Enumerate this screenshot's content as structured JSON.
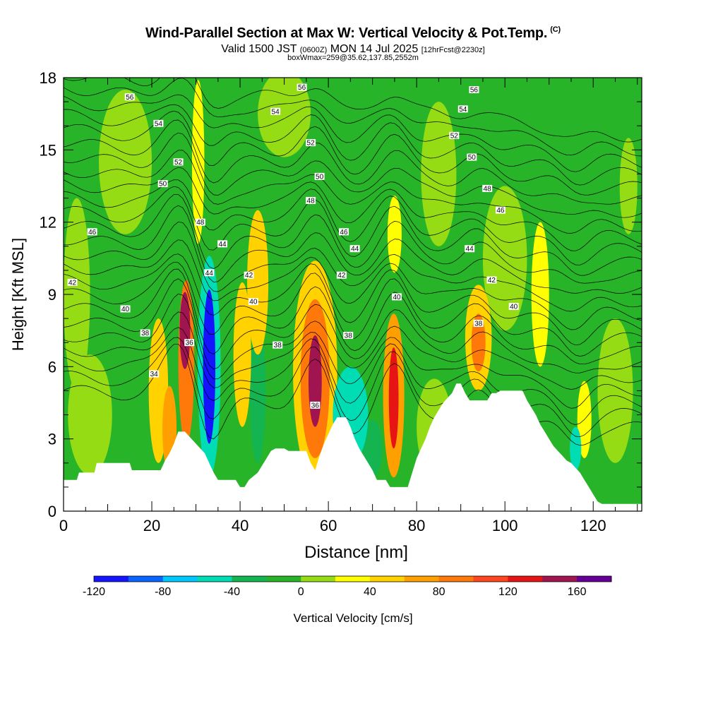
{
  "header": {
    "title": "Wind-Parallel Section at Max W: Vertical Velocity & Pot.Temp.",
    "copyright": "(C)",
    "valid_prefix": "Valid 1500 JST",
    "valid_zulu": "(0600Z)",
    "valid_date": "MON 14 Jul 2025",
    "forecast": "[12hrFcst@2230z]",
    "box_info": "boxWmax=259@35.62,137.85,2552m"
  },
  "chart_data": {
    "type": "heatmap",
    "xlabel": "Distance [nm]",
    "ylabel": "Height [Kft MSL]",
    "xlim": [
      0,
      131
    ],
    "ylim": [
      0,
      18
    ],
    "xticks": [
      0,
      20,
      40,
      60,
      80,
      100,
      120
    ],
    "yticks": [
      0,
      3,
      6,
      9,
      12,
      15,
      18
    ],
    "colorbar": {
      "label": "Vertical Velocity [cm/s]",
      "levels": [
        -120,
        -100,
        -80,
        -60,
        -40,
        -20,
        0,
        20,
        40,
        60,
        80,
        100,
        120,
        140,
        160,
        180
      ],
      "tick_labels": [
        "-120",
        "-80",
        "-40",
        "0",
        "40",
        "80",
        "120",
        "160"
      ],
      "tick_values": [
        -120,
        -80,
        -40,
        0,
        40,
        80,
        120,
        160
      ],
      "colors": [
        "#1414ff",
        "#0a64ff",
        "#00c8ff",
        "#00dcb4",
        "#14b450",
        "#28b428",
        "#96dc14",
        "#ffff00",
        "#ffd200",
        "#ffa000",
        "#ff780a",
        "#ff461e",
        "#e61414",
        "#a01450",
        "#640096"
      ]
    },
    "background_value": -20,
    "velocity_cells": [
      {
        "x": 27.5,
        "z": 7.5,
        "wx": 1.2,
        "wz": 1.6,
        "w": 140
      },
      {
        "x": 27.8,
        "z": 6.2,
        "wx": 1.8,
        "wz": 3.4,
        "w": 80
      },
      {
        "x": 33.0,
        "z": 6.0,
        "wx": 1.4,
        "wz": 3.2,
        "w": -120
      },
      {
        "x": 33.0,
        "z": 6.0,
        "wx": 2.6,
        "wz": 4.6,
        "w": -60
      },
      {
        "x": 57.0,
        "z": 5.4,
        "wx": 1.5,
        "wz": 1.9,
        "w": 150
      },
      {
        "x": 57.0,
        "z": 5.5,
        "wx": 3.3,
        "wz": 3.3,
        "w": 80
      },
      {
        "x": 57.0,
        "z": 5.8,
        "wx": 5.0,
        "wz": 4.6,
        "w": 40
      },
      {
        "x": 74.8,
        "z": 4.7,
        "wx": 1.1,
        "wz": 2.1,
        "w": 130
      },
      {
        "x": 74.8,
        "z": 4.8,
        "wx": 2.4,
        "wz": 3.4,
        "w": 60
      },
      {
        "x": 94.0,
        "z": 7.0,
        "wx": 1.6,
        "wz": 1.2,
        "w": 80
      },
      {
        "x": 94.0,
        "z": 7.2,
        "wx": 3.0,
        "wz": 2.2,
        "w": 40
      },
      {
        "x": 21.5,
        "z": 5.0,
        "wx": 2.2,
        "wz": 3.0,
        "w": 40
      },
      {
        "x": 24.0,
        "z": 3.4,
        "wx": 1.6,
        "wz": 1.8,
        "w": 60
      },
      {
        "x": 65.0,
        "z": 4.0,
        "wx": 4.0,
        "wz": 2.0,
        "w": -60
      },
      {
        "x": 70.0,
        "z": 2.6,
        "wx": 2.2,
        "wz": 1.2,
        "w": -40
      },
      {
        "x": 44.0,
        "z": 9.5,
        "wx": 2.4,
        "wz": 3.0,
        "w": 40
      },
      {
        "x": 40.5,
        "z": 6.5,
        "wx": 2.0,
        "wz": 3.0,
        "w": 40
      },
      {
        "x": 30.5,
        "z": 14.5,
        "wx": 1.4,
        "wz": 3.4,
        "w": 30
      },
      {
        "x": 75.0,
        "z": 11.5,
        "wx": 1.6,
        "wz": 1.6,
        "w": 30
      },
      {
        "x": 108.0,
        "z": 9.0,
        "wx": 2.0,
        "wz": 3.0,
        "w": 30
      },
      {
        "x": 118.0,
        "z": 3.8,
        "wx": 1.6,
        "wz": 1.6,
        "w": 30
      },
      {
        "x": 116.0,
        "z": 2.6,
        "wx": 1.3,
        "wz": 0.9,
        "w": -60
      },
      {
        "x": 44.0,
        "z": 5.0,
        "wx": 1.8,
        "wz": 3.0,
        "w": -30
      },
      {
        "x": 14.0,
        "z": 14.5,
        "wx": 6.0,
        "wz": 3.0,
        "w": 10
      },
      {
        "x": 50.0,
        "z": 16.5,
        "wx": 6.0,
        "wz": 1.8,
        "w": 10
      },
      {
        "x": 85.0,
        "z": 14.0,
        "wx": 4.0,
        "wz": 3.0,
        "w": 10
      },
      {
        "x": 128.0,
        "z": 13.5,
        "wx": 2.0,
        "wz": 2.0,
        "w": 10
      },
      {
        "x": 100.0,
        "z": 10.5,
        "wx": 5.0,
        "wz": 3.0,
        "w": 10
      },
      {
        "x": 6.0,
        "z": 4.0,
        "wx": 5.0,
        "wz": 2.5,
        "w": 10
      },
      {
        "x": 3.0,
        "z": 9.0,
        "wx": 3.0,
        "wz": 4.0,
        "w": 10
      },
      {
        "x": 125.0,
        "z": 5.0,
        "wx": 4.0,
        "wz": 3.0,
        "w": 10
      },
      {
        "x": 84.0,
        "z": 3.5,
        "wx": 4.0,
        "wz": 2.0,
        "w": 10
      }
    ],
    "terrain": [
      [
        0,
        1.3
      ],
      [
        3,
        1.3
      ],
      [
        3.5,
        1.6
      ],
      [
        7,
        1.6
      ],
      [
        7.5,
        2.0
      ],
      [
        15,
        2.0
      ],
      [
        15.5,
        1.7
      ],
      [
        22,
        1.7
      ],
      [
        23,
        2.1
      ],
      [
        24,
        2.4
      ],
      [
        25,
        2.8
      ],
      [
        26,
        3.3
      ],
      [
        27.5,
        3.3
      ],
      [
        29,
        3.0
      ],
      [
        30.5,
        2.7
      ],
      [
        32,
        2.4
      ],
      [
        33,
        2.0
      ],
      [
        34,
        1.6
      ],
      [
        35,
        1.3
      ],
      [
        39,
        1.3
      ],
      [
        40,
        1.0
      ],
      [
        41,
        1.0
      ],
      [
        42,
        1.3
      ],
      [
        44,
        1.6
      ],
      [
        45,
        1.9
      ],
      [
        46,
        2.2
      ],
      [
        47,
        2.5
      ],
      [
        48,
        2.6
      ],
      [
        50,
        2.6
      ],
      [
        51,
        2.5
      ],
      [
        55,
        2.5
      ],
      [
        56,
        2.0
      ],
      [
        57,
        1.7
      ],
      [
        58,
        2.3
      ],
      [
        59,
        2.8
      ],
      [
        60,
        3.2
      ],
      [
        61,
        3.6
      ],
      [
        62,
        3.9
      ],
      [
        64,
        3.9
      ],
      [
        65,
        3.5
      ],
      [
        66,
        3.0
      ],
      [
        67,
        2.6
      ],
      [
        68,
        2.3
      ],
      [
        69,
        2.0
      ],
      [
        70,
        1.7
      ],
      [
        71,
        1.3
      ],
      [
        73,
        1.3
      ],
      [
        74,
        1.0
      ],
      [
        78,
        1.0
      ],
      [
        79,
        1.6
      ],
      [
        80,
        2.2
      ],
      [
        81,
        2.6
      ],
      [
        82,
        3.0
      ],
      [
        83,
        3.5
      ],
      [
        84,
        3.9
      ],
      [
        85,
        4.2
      ],
      [
        86,
        4.5
      ],
      [
        87,
        4.7
      ],
      [
        88,
        4.9
      ],
      [
        89,
        5.3
      ],
      [
        90,
        5.3
      ],
      [
        91,
        4.9
      ],
      [
        92,
        4.6
      ],
      [
        96,
        4.6
      ],
      [
        97,
        4.9
      ],
      [
        98,
        4.9
      ],
      [
        99,
        5.0
      ],
      [
        104,
        5.0
      ],
      [
        105,
        4.6
      ],
      [
        106,
        4.3
      ],
      [
        107,
        4.0
      ],
      [
        108,
        3.6
      ],
      [
        109,
        3.3
      ],
      [
        110,
        3.0
      ],
      [
        111,
        2.7
      ],
      [
        112,
        2.5
      ],
      [
        113,
        2.3
      ],
      [
        114,
        2.1
      ],
      [
        115,
        2.0
      ],
      [
        116,
        1.8
      ],
      [
        117,
        1.6
      ],
      [
        118,
        1.3
      ],
      [
        119,
        1.0
      ],
      [
        120,
        0.7
      ],
      [
        121,
        0.4
      ],
      [
        122,
        0.3
      ],
      [
        131,
        0.3
      ]
    ],
    "theta_contours": {
      "levels": [
        34,
        35,
        36,
        37,
        38,
        39,
        40,
        41,
        42,
        43,
        44,
        45,
        46,
        47,
        48,
        49,
        50,
        51,
        52,
        53,
        54,
        55,
        56,
        57
      ],
      "base_height_at_34": 4.3,
      "kft_per_degree": 0.55,
      "labels": [
        {
          "text": "56",
          "x": 15,
          "z": 17.2
        },
        {
          "text": "54",
          "x": 21.5,
          "z": 16.1
        },
        {
          "text": "52",
          "x": 26,
          "z": 14.5
        },
        {
          "text": "50",
          "x": 22.5,
          "z": 13.6
        },
        {
          "text": "48",
          "x": 31,
          "z": 12.0
        },
        {
          "text": "44",
          "x": 36,
          "z": 11.1
        },
        {
          "text": "44",
          "x": 33,
          "z": 9.9
        },
        {
          "text": "46",
          "x": 6.5,
          "z": 11.6
        },
        {
          "text": "42",
          "x": 2.0,
          "z": 9.5
        },
        {
          "text": "40",
          "x": 14,
          "z": 8.4
        },
        {
          "text": "38",
          "x": 18.5,
          "z": 7.4
        },
        {
          "text": "36",
          "x": 28.5,
          "z": 7.0
        },
        {
          "text": "34",
          "x": 20.5,
          "z": 5.7
        },
        {
          "text": "42",
          "x": 42,
          "z": 9.8
        },
        {
          "text": "40",
          "x": 43,
          "z": 8.7
        },
        {
          "text": "38",
          "x": 48.5,
          "z": 6.9
        },
        {
          "text": "36",
          "x": 57,
          "z": 4.4
        },
        {
          "text": "38",
          "x": 64.5,
          "z": 7.3
        },
        {
          "text": "40",
          "x": 75.5,
          "z": 8.9
        },
        {
          "text": "42",
          "x": 63,
          "z": 9.8
        },
        {
          "text": "44",
          "x": 66,
          "z": 10.9
        },
        {
          "text": "46",
          "x": 63.5,
          "z": 11.6
        },
        {
          "text": "48",
          "x": 56,
          "z": 12.9
        },
        {
          "text": "50",
          "x": 58,
          "z": 13.9
        },
        {
          "text": "52",
          "x": 56,
          "z": 15.3
        },
        {
          "text": "54",
          "x": 48,
          "z": 16.6
        },
        {
          "text": "56",
          "x": 54,
          "z": 17.6
        },
        {
          "text": "56",
          "x": 93,
          "z": 17.5
        },
        {
          "text": "54",
          "x": 90.5,
          "z": 16.7
        },
        {
          "text": "52",
          "x": 88.5,
          "z": 15.6
        },
        {
          "text": "50",
          "x": 92.5,
          "z": 14.7
        },
        {
          "text": "48",
          "x": 96,
          "z": 13.4
        },
        {
          "text": "46",
          "x": 99,
          "z": 12.5
        },
        {
          "text": "44",
          "x": 92,
          "z": 10.9
        },
        {
          "text": "42",
          "x": 97,
          "z": 9.6
        },
        {
          "text": "40",
          "x": 102,
          "z": 8.5
        },
        {
          "text": "38",
          "x": 94,
          "z": 7.8
        }
      ]
    }
  }
}
